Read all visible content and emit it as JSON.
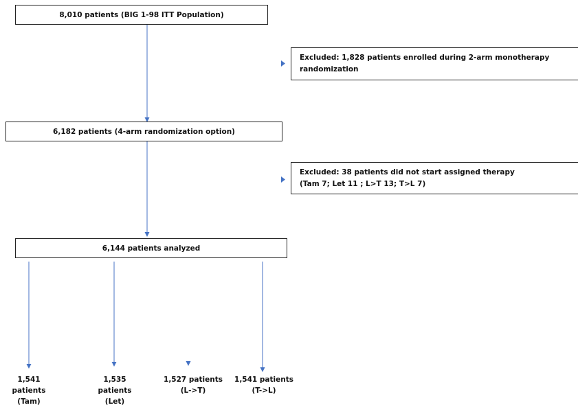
{
  "diagram": {
    "top_box": {
      "text": "8,010 patients (BIG 1-98 ITT Population)"
    },
    "exclusion_1": {
      "line1": "Excluded: 1,828 patients enrolled during 2-arm monotherapy",
      "line2": "randomization"
    },
    "middle_box": {
      "text": "6,182 patients (4-arm randomization option)"
    },
    "exclusion_2": {
      "line1": "Excluded: 38 patients did not start assigned therapy",
      "line2": "(Tam 7; Let 11 ; L>T 13;  T>L 7)"
    },
    "analyzed_box": {
      "text": "6,144 patients analyzed"
    },
    "arms": [
      {
        "line1": "1,541",
        "line2": "patients",
        "line3": "(Tam)"
      },
      {
        "line1": "1,535",
        "line2": "patients",
        "line3": "(Let)"
      },
      {
        "line1": "1,527 patients",
        "line2": "(L->T)",
        "line3": ""
      },
      {
        "line1": "1,541 patients",
        "line2": "(T->L)",
        "line3": ""
      }
    ],
    "colors": {
      "arrow": "#4472c4",
      "box_border": "#222222",
      "text": "#111111"
    }
  }
}
